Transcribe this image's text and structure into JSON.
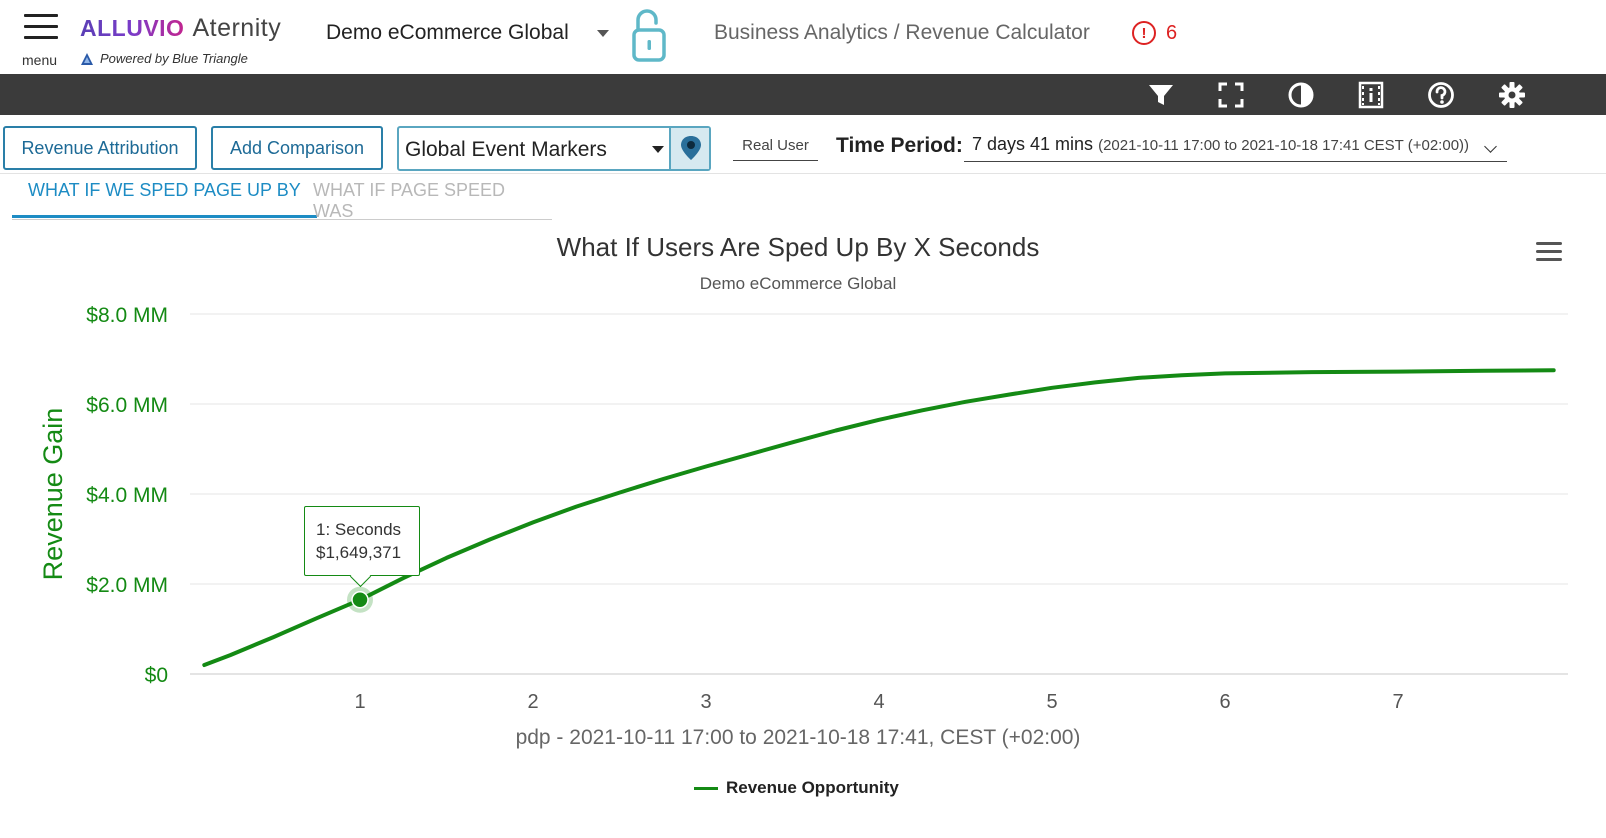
{
  "header": {
    "menu_label": "menu",
    "brand_alluvio": "ALLUVIO",
    "brand_aternity": "Aternity",
    "powered_by": "Powered by Blue Triangle",
    "site_name": "Demo eCommerce Global",
    "breadcrumb": "Business Analytics / Revenue Calculator",
    "alert_count": "6"
  },
  "toolbar": {
    "icons": [
      "filter-icon",
      "fullscreen-icon",
      "contrast-icon",
      "film-info-icon",
      "help-icon",
      "settings-icon"
    ]
  },
  "controls": {
    "revenue_attribution": "Revenue Attribution",
    "add_comparison": "Add Comparison",
    "event_markers": "Global Event Markers",
    "real_user": "Real User",
    "time_period_label": "Time Period:",
    "time_period_value": "7 days 41 mins",
    "time_period_range": "(2021-10-11 17:00 to 2021-10-18 17:41 CEST (+02:00))"
  },
  "tabs": [
    {
      "label": "WHAT IF WE SPED PAGE UP BY",
      "active": true
    },
    {
      "label": "WHAT IF PAGE SPEED WAS",
      "active": false
    }
  ],
  "tooltip": {
    "line1": "1: Seconds",
    "line2": "$1,649,371"
  },
  "colors": {
    "series": "#148a14",
    "accent": "#1d8cc4",
    "toolbar_bg": "#3b3b3b",
    "alert": "#dd2222"
  },
  "chart_data": {
    "type": "line",
    "title": "What If Users Are Sped Up By X Seconds",
    "subtitle": "Demo eCommerce Global",
    "xlabel": "pdp - 2021-10-11 17:00 to 2021-10-18 17:41, CEST (+02:00)",
    "ylabel": "Revenue Gain",
    "x_ticks": [
      1,
      2,
      3,
      4,
      5,
      6,
      7
    ],
    "y_ticks": [
      {
        "value": 0,
        "label": "$0"
      },
      {
        "value": 2,
        "label": "$2.0 MM"
      },
      {
        "value": 4,
        "label": "$4.0 MM"
      },
      {
        "value": 6,
        "label": "$6.0 MM"
      },
      {
        "value": 8,
        "label": "$8.0 MM"
      }
    ],
    "xlim": [
      0,
      8.0
    ],
    "ylim": [
      0,
      8
    ],
    "grid": true,
    "legend_position": "bottom-center",
    "series": [
      {
        "name": "Revenue Opportunity",
        "highlighted_point": {
          "x": 1,
          "y": 1.649371
        },
        "points": [
          [
            0.1,
            0.2
          ],
          [
            0.25,
            0.42
          ],
          [
            0.5,
            0.82
          ],
          [
            0.75,
            1.24
          ],
          [
            1.0,
            1.649371
          ],
          [
            1.25,
            2.13
          ],
          [
            1.5,
            2.58
          ],
          [
            1.75,
            2.99
          ],
          [
            2.0,
            3.37
          ],
          [
            2.25,
            3.72
          ],
          [
            2.5,
            4.03
          ],
          [
            2.75,
            4.33
          ],
          [
            3.0,
            4.61
          ],
          [
            3.25,
            4.88
          ],
          [
            3.5,
            5.15
          ],
          [
            3.75,
            5.41
          ],
          [
            4.0,
            5.65
          ],
          [
            4.25,
            5.86
          ],
          [
            4.5,
            6.05
          ],
          [
            4.75,
            6.21
          ],
          [
            5.0,
            6.36
          ],
          [
            5.25,
            6.48
          ],
          [
            5.5,
            6.58
          ],
          [
            5.75,
            6.64
          ],
          [
            6.0,
            6.68
          ],
          [
            6.5,
            6.71
          ],
          [
            7.0,
            6.72
          ],
          [
            7.5,
            6.74
          ],
          [
            7.9,
            6.75
          ]
        ]
      }
    ]
  }
}
